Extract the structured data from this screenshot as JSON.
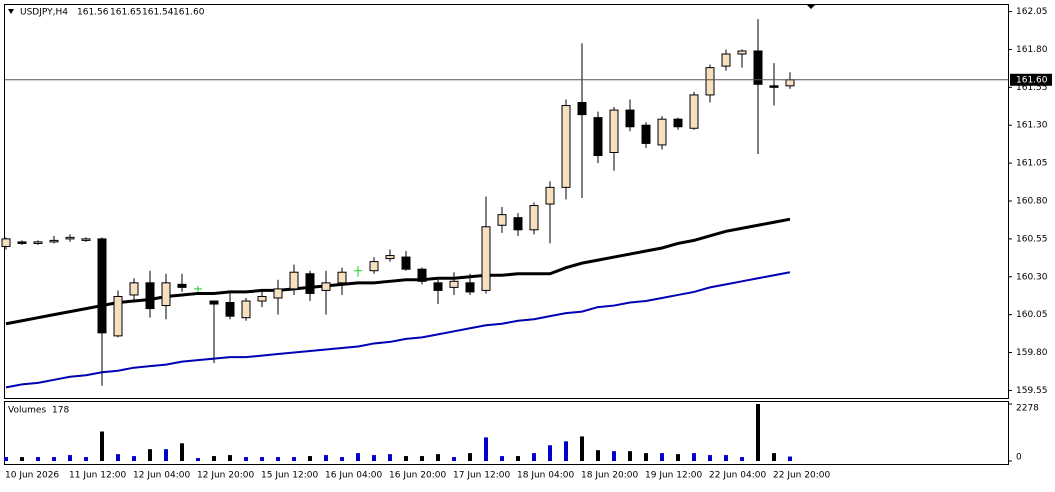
{
  "chart_data": [
    {
      "type": "candlestick",
      "title": "USDJPY,H4",
      "x": [
        "10 Jun 2026",
        null,
        null,
        null,
        "11 Jun 12:00",
        null,
        null,
        null,
        "12 Jun 04:00",
        null,
        null,
        null,
        "12 Jun 20:00",
        null,
        null,
        null,
        "15 Jun 12:00",
        null,
        null,
        null,
        "16 Jun 04:00",
        null,
        null,
        null,
        "16 Jun 20:00",
        null,
        null,
        null,
        "17 Jun 12:00",
        null,
        null,
        null,
        "18 Jun 04:00",
        null,
        null,
        null,
        "18 Jun 20:00",
        null,
        null,
        null,
        "19 Jun 12:00",
        null,
        null,
        null,
        "22 Jun 04:00",
        null,
        null,
        null,
        "22 Jun 20:00",
        null
      ],
      "open": [
        160.5,
        160.53,
        160.52,
        160.53,
        160.55,
        160.54,
        160.55,
        159.91,
        160.18,
        160.26,
        160.11,
        160.25,
        160.22,
        160.14,
        160.13,
        160.03,
        160.14,
        160.16,
        160.22,
        160.32,
        160.21,
        160.26,
        160.34,
        160.34,
        160.42,
        160.43,
        160.35,
        160.26,
        160.23,
        160.26,
        160.21,
        160.64,
        160.69,
        160.61,
        160.78,
        160.89,
        161.45,
        161.35,
        161.12,
        161.4,
        161.3,
        161.17,
        161.34,
        161.28,
        161.5,
        161.69,
        161.77,
        161.79,
        161.56,
        161.56
      ],
      "high": [
        160.56,
        160.54,
        160.54,
        160.57,
        160.58,
        160.56,
        160.56,
        160.21,
        160.29,
        160.34,
        160.32,
        160.32,
        160.24,
        160.14,
        160.19,
        160.16,
        160.2,
        160.28,
        160.38,
        160.34,
        160.34,
        160.36,
        160.37,
        160.43,
        160.48,
        160.47,
        160.36,
        160.28,
        160.33,
        160.32,
        160.83,
        160.76,
        160.72,
        160.79,
        160.93,
        161.47,
        161.84,
        161.39,
        161.42,
        161.47,
        161.32,
        161.36,
        161.35,
        161.52,
        161.7,
        161.8,
        161.8,
        162.0,
        161.71,
        161.65
      ],
      "low": [
        160.48,
        160.51,
        160.51,
        160.52,
        160.53,
        160.53,
        159.58,
        159.9,
        160.15,
        160.03,
        160.02,
        160.2,
        160.2,
        159.73,
        160.02,
        160.01,
        160.1,
        160.05,
        160.18,
        160.14,
        160.05,
        160.18,
        160.3,
        160.32,
        160.4,
        160.34,
        160.25,
        160.12,
        160.18,
        160.18,
        160.19,
        160.59,
        160.57,
        160.58,
        160.52,
        160.81,
        160.82,
        161.05,
        161.0,
        161.26,
        161.15,
        161.14,
        161.27,
        161.27,
        161.45,
        161.66,
        161.68,
        161.11,
        161.43,
        161.54
      ],
      "close": [
        160.55,
        160.52,
        160.53,
        160.54,
        160.56,
        160.55,
        159.93,
        160.17,
        160.26,
        160.09,
        160.26,
        160.23,
        160.22,
        160.12,
        160.04,
        160.14,
        160.17,
        160.22,
        160.33,
        160.19,
        160.26,
        160.33,
        160.34,
        160.4,
        160.44,
        160.35,
        160.27,
        160.21,
        160.27,
        160.2,
        160.63,
        160.71,
        160.61,
        160.77,
        160.89,
        161.43,
        161.37,
        161.1,
        161.4,
        161.29,
        161.18,
        161.34,
        161.29,
        161.5,
        161.68,
        161.77,
        161.79,
        161.57,
        161.55,
        161.6
      ],
      "value_labels": {
        "open": "161.56",
        "high": "161.65",
        "low": "161.54",
        "close": "161.60"
      },
      "up_color": "#f7dfc2",
      "down_color": "#000000",
      "doji_color": "#22cc22",
      "lines": [
        {
          "color": "#000000",
          "values": [
            159.99,
            160.01,
            160.03,
            160.05,
            160.07,
            160.09,
            160.11,
            160.13,
            160.14,
            160.15,
            160.17,
            160.18,
            160.19,
            160.19,
            160.2,
            160.2,
            160.21,
            160.21,
            160.22,
            160.23,
            160.24,
            160.25,
            160.26,
            160.26,
            160.27,
            160.28,
            160.28,
            160.29,
            160.29,
            160.3,
            160.31,
            160.31,
            160.32,
            160.32,
            160.32,
            160.36,
            160.39,
            160.41,
            160.43,
            160.45,
            160.47,
            160.49,
            160.52,
            160.54,
            160.57,
            160.6,
            160.62,
            160.64,
            160.66,
            160.68
          ]
        },
        {
          "color": "#0000b4",
          "values": [
            159.57,
            159.59,
            159.6,
            159.62,
            159.64,
            159.65,
            159.67,
            159.68,
            159.7,
            159.71,
            159.72,
            159.74,
            159.75,
            159.76,
            159.77,
            159.77,
            159.78,
            159.79,
            159.8,
            159.81,
            159.82,
            159.83,
            159.84,
            159.86,
            159.87,
            159.89,
            159.9,
            159.92,
            159.94,
            159.96,
            159.98,
            159.99,
            160.01,
            160.02,
            160.04,
            160.06,
            160.07,
            160.1,
            160.11,
            160.13,
            160.14,
            160.16,
            160.18,
            160.2,
            160.23,
            160.25,
            160.27,
            160.29,
            160.31,
            160.33
          ]
        }
      ],
      "ylim": [
        159.5,
        162.1
      ],
      "yticks": [
        162.05,
        {
          "value": 161.8,
          "label": "161.80"
        },
        161.55,
        {
          "value": 161.3,
          "label": "161.30"
        },
        161.05,
        {
          "value": 160.8,
          "label": "160.80"
        },
        160.55,
        {
          "value": 160.3,
          "label": "160.30"
        },
        160.05,
        {
          "value": 159.8,
          "label": "159.80"
        },
        159.55
      ]
    },
    {
      "type": "bar",
      "title": "Volumes",
      "values": [
        157,
        157,
        157,
        157,
        236,
        157,
        1179,
        275,
        197,
        472,
        472,
        707,
        118,
        197,
        236,
        157,
        157,
        157,
        157,
        197,
        236,
        157,
        314,
        236,
        275,
        197,
        197,
        275,
        157,
        314,
        943,
        197,
        197,
        314,
        629,
        786,
        982,
        432,
        393,
        393,
        314,
        314,
        275,
        314,
        236,
        236,
        157,
        2278,
        314,
        178
      ],
      "up_color": "#0000c8",
      "down_color": "#000000",
      "ylim": [
        0,
        2278
      ],
      "yticks": [
        0,
        2278
      ]
    }
  ]
}
